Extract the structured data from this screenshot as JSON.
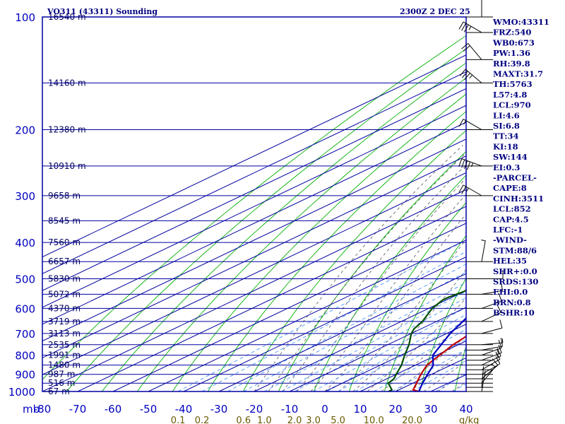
{
  "chart_data": {
    "type": "skew-t",
    "title": "VO311 (43311) Sounding",
    "datetime": "2300Z  2 DEC 25",
    "xlabel": "°C",
    "ylabel": "mb",
    "pressure_range_mb": [
      100,
      1000
    ],
    "temperature_range_c": [
      -80,
      40
    ],
    "pressure_ticks": [
      "100",
      "200",
      "300",
      "400",
      "500",
      "600",
      "700",
      "800",
      "900",
      "1000"
    ],
    "pressure_ticks_values": [
      100,
      200,
      300,
      400,
      500,
      600,
      700,
      800,
      900,
      1000
    ],
    "temperature_ticks": [
      "-80",
      "-70",
      "-60",
      "-50",
      "-40",
      "-30",
      "-20",
      "-10",
      "0",
      "10",
      "20",
      "30",
      "40"
    ],
    "temperature_ticks_values": [
      -80,
      -70,
      -60,
      -50,
      -40,
      -30,
      -20,
      -10,
      0,
      10,
      20,
      30,
      40
    ],
    "mixing_ratio_labels": [
      "0.1",
      "0.2",
      "0.6",
      "1.0",
      "2.0",
      "3.0",
      "5.0",
      "10.0",
      "20.0"
    ],
    "mixing_ratio_unit": "g/kg",
    "height_labels": [
      {
        "p": 100,
        "label": "16540 m"
      },
      {
        "p": 150,
        "label": "14160 m"
      },
      {
        "p": 200,
        "label": "12380 m"
      },
      {
        "p": 250,
        "label": "10910 m"
      },
      {
        "p": 300,
        "label": "9658 m"
      },
      {
        "p": 350,
        "label": "8545 m"
      },
      {
        "p": 400,
        "label": "7560 m"
      },
      {
        "p": 450,
        "label": "6657 m"
      },
      {
        "p": 500,
        "label": "5830 m"
      },
      {
        "p": 550,
        "label": "5072 m"
      },
      {
        "p": 600,
        "label": "4370 m"
      },
      {
        "p": 650,
        "label": "3719 m"
      },
      {
        "p": 700,
        "label": "3113 m"
      },
      {
        "p": 750,
        "label": "2535 m"
      },
      {
        "p": 800,
        "label": "1991 m"
      },
      {
        "p": 850,
        "label": "1480 m"
      },
      {
        "p": 900,
        "label": "987 m"
      },
      {
        "p": 950,
        "label": "516 m"
      },
      {
        "p": 1000,
        "label": "67 m"
      }
    ],
    "series": [
      {
        "name": "temperature",
        "color": "#c00000",
        "points": [
          [
            1000,
            26.6
          ],
          [
            990,
            24
          ],
          [
            950,
            21
          ],
          [
            925,
            19
          ],
          [
            900,
            17
          ],
          [
            850,
            13.2
          ],
          [
            750,
            8.5
          ],
          [
            700,
            6.8
          ],
          [
            650,
            4
          ],
          [
            600,
            1
          ],
          [
            580,
            -0.2
          ],
          [
            560,
            -1
          ],
          [
            550,
            -1
          ],
          [
            500,
            -4.7
          ],
          [
            450,
            -9.5
          ],
          [
            430,
            -11.8
          ],
          [
            400,
            -15.5
          ],
          [
            350,
            -21.5
          ],
          [
            300,
            -28
          ],
          [
            250,
            -36
          ],
          [
            210,
            -44
          ],
          [
            200,
            -46
          ],
          [
            150,
            -58
          ],
          [
            120,
            -66
          ],
          [
            100,
            -72
          ]
        ]
      },
      {
        "name": "dewpoint",
        "color": "#005000",
        "points": [
          [
            1000,
            18
          ],
          [
            990,
            18
          ],
          [
            950,
            13
          ],
          [
            925,
            12
          ],
          [
            900,
            10
          ],
          [
            850,
            6
          ],
          [
            800,
            1
          ],
          [
            750,
            -4
          ],
          [
            700,
            -10
          ],
          [
            680,
            -12
          ],
          [
            650,
            -14
          ],
          [
            600,
            -19
          ],
          [
            570,
            -21
          ],
          [
            560,
            -21
          ],
          [
            540,
            -20
          ],
          [
            500,
            -23
          ],
          [
            480,
            -24.2
          ],
          [
            470,
            -21.5
          ],
          [
            460,
            -21
          ],
          [
            440,
            -21.5
          ],
          [
            400,
            -27
          ],
          [
            350,
            -35
          ],
          [
            320,
            -37
          ],
          [
            300,
            -37
          ],
          [
            250,
            -43
          ],
          [
            200,
            -55
          ],
          [
            160,
            -63
          ],
          [
            150,
            -66
          ],
          [
            140,
            -69
          ]
        ]
      },
      {
        "name": "parcel",
        "color": "#0000c0",
        "points": [
          [
            1000,
            26.6
          ],
          [
            950,
            22.7
          ],
          [
            900,
            18.9
          ],
          [
            852,
            15.2
          ],
          [
            800,
            9
          ],
          [
            700,
            1
          ],
          [
            600,
            -6.5
          ],
          [
            500,
            -14.5
          ],
          [
            400,
            -24
          ],
          [
            300,
            -35
          ],
          [
            250,
            -42
          ],
          [
            200,
            -50
          ],
          [
            150,
            -62
          ],
          [
            130,
            -68
          ],
          [
            120,
            -71
          ]
        ]
      }
    ],
    "winds": [
      {
        "p": 1000,
        "dir": 10,
        "spd": 3
      },
      {
        "p": 975,
        "dir": 5,
        "spd": 4
      },
      {
        "p": 950,
        "dir": 40,
        "spd": 8
      },
      {
        "p": 925,
        "dir": 50,
        "spd": 10
      },
      {
        "p": 900,
        "dir": 60,
        "spd": 12
      },
      {
        "p": 875,
        "dir": 60,
        "spd": 14
      },
      {
        "p": 850,
        "dir": 65,
        "spd": 15
      },
      {
        "p": 825,
        "dir": 70,
        "spd": 15
      },
      {
        "p": 800,
        "dir": 70,
        "spd": 12
      },
      {
        "p": 775,
        "dir": 80,
        "spd": 10
      },
      {
        "p": 750,
        "dir": 85,
        "spd": 8
      },
      {
        "p": 700,
        "dir": 75,
        "spd": 10
      },
      {
        "p": 650,
        "dir": 65,
        "spd": 12
      },
      {
        "p": 600,
        "dir": 70,
        "spd": 10
      },
      {
        "p": 550,
        "dir": 80,
        "spd": 10
      },
      {
        "p": 500,
        "dir": 90,
        "spd": 10
      },
      {
        "p": 450,
        "dir": 10,
        "spd": 5
      },
      {
        "p": 300,
        "dir": 300,
        "spd": 25
      },
      {
        "p": 250,
        "dir": 290,
        "spd": 45
      },
      {
        "p": 200,
        "dir": 300,
        "spd": 15
      },
      {
        "p": 150,
        "dir": 310,
        "spd": 35
      },
      {
        "p": 130,
        "dir": 320,
        "spd": 20
      },
      {
        "p": 110,
        "dir": 300,
        "spd": 35
      },
      {
        "p": 100,
        "dir": 0,
        "spd": 5
      }
    ]
  },
  "indices": [
    "WMO:43311",
    "FRZ:540",
    "WB0:673",
    "PW:1.36",
    "RH:39.8",
    "MAXT:31.7",
    "TH:5763",
    "L57:4.8",
    "LCL:970",
    "LI:4.6",
    "SI:6.8",
    "TT:34",
    "KI:18",
    "SW:144",
    "EI:0.3",
    "-PARCEL-",
    "CAPE:8",
    "CINH:3511",
    "LCL:852",
    "CAP:4.5",
    "LFC:-1",
    "-WIND-",
    "STM:88/6",
    "HEL:35",
    "SHR+:0.0",
    "SRDS:130",
    "EHI:0.0",
    "BRN:0.8",
    "BSHR:10"
  ],
  "colors": {
    "frame": "#0000a0",
    "isotherm": "#0000a0",
    "dry_adiabat": "#00b000",
    "moist_adiabat": "#555555",
    "mixing_ratio": "#2f86ff",
    "title": "#000080",
    "axis_label": "#0000c0",
    "mixing_label": "#6a5a00",
    "indices_text": "#000080"
  }
}
